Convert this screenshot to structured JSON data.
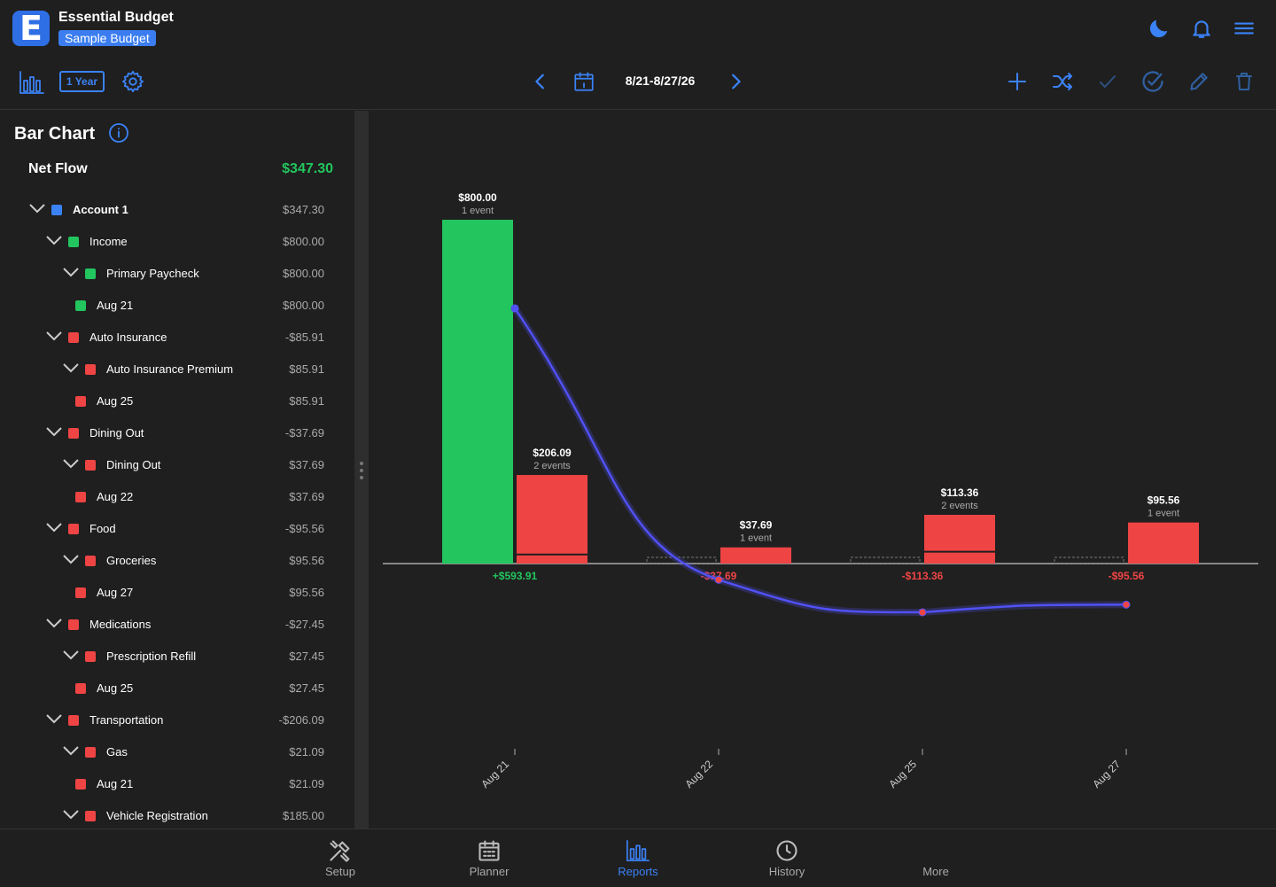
{
  "app": {
    "logo_letter": "E",
    "title": "Essential Budget",
    "budget_name": "Sample Budget"
  },
  "toolbar": {
    "period_label": "1 Year",
    "date_range": "8/21-8/27/26"
  },
  "panel": {
    "title": "Bar Chart",
    "net_flow_label": "Net Flow",
    "net_flow_value": "$347.30",
    "tree": [
      {
        "level": 0,
        "label": "Account 1",
        "value": "$347.30",
        "color": "#3b82f6",
        "expanded": true,
        "bold": true
      },
      {
        "level": 1,
        "label": "Income",
        "value": "$800.00",
        "color": "#22c55e",
        "expanded": true
      },
      {
        "level": 2,
        "label": "Primary Paycheck",
        "value": "$800.00",
        "color": "#22c55e",
        "expanded": true
      },
      {
        "level": 3,
        "label": "Aug 21",
        "value": "$800.00",
        "color": "#22c55e"
      },
      {
        "level": 1,
        "label": "Auto Insurance",
        "value": "-$85.91",
        "color": "#ef4444",
        "expanded": true
      },
      {
        "level": 2,
        "label": "Auto Insurance Premium",
        "value": "$85.91",
        "color": "#ef4444",
        "expanded": true
      },
      {
        "level": 3,
        "label": "Aug 25",
        "value": "$85.91",
        "color": "#ef4444"
      },
      {
        "level": 1,
        "label": "Dining Out",
        "value": "-$37.69",
        "color": "#ef4444",
        "expanded": true
      },
      {
        "level": 2,
        "label": "Dining Out",
        "value": "$37.69",
        "color": "#ef4444",
        "expanded": true
      },
      {
        "level": 3,
        "label": "Aug 22",
        "value": "$37.69",
        "color": "#ef4444"
      },
      {
        "level": 1,
        "label": "Food",
        "value": "-$95.56",
        "color": "#ef4444",
        "expanded": true
      },
      {
        "level": 2,
        "label": "Groceries",
        "value": "$95.56",
        "color": "#ef4444",
        "expanded": true
      },
      {
        "level": 3,
        "label": "Aug 27",
        "value": "$95.56",
        "color": "#ef4444"
      },
      {
        "level": 1,
        "label": "Medications",
        "value": "-$27.45",
        "color": "#ef4444",
        "expanded": true
      },
      {
        "level": 2,
        "label": "Prescription Refill",
        "value": "$27.45",
        "color": "#ef4444",
        "expanded": true
      },
      {
        "level": 3,
        "label": "Aug 25",
        "value": "$27.45",
        "color": "#ef4444"
      },
      {
        "level": 1,
        "label": "Transportation",
        "value": "-$206.09",
        "color": "#ef4444",
        "expanded": true
      },
      {
        "level": 2,
        "label": "Gas",
        "value": "$21.09",
        "color": "#ef4444",
        "expanded": true
      },
      {
        "level": 3,
        "label": "Aug 21",
        "value": "$21.09",
        "color": "#ef4444"
      },
      {
        "level": 2,
        "label": "Vehicle Registration",
        "value": "$185.00",
        "color": "#ef4444",
        "expanded": true
      }
    ]
  },
  "chart_data": {
    "type": "bar",
    "categories": [
      "Aug 21",
      "Aug 22",
      "Aug 25",
      "Aug 27"
    ],
    "income": [
      {
        "value": 800.0,
        "label": "$800.00",
        "events": "1 event"
      },
      null,
      null,
      null
    ],
    "expenses": [
      {
        "value": 206.09,
        "label": "$206.09",
        "events": "2 events",
        "segments": [
          185.0,
          21.09
        ]
      },
      {
        "value": 37.69,
        "label": "$37.69",
        "events": "1 event",
        "segments": [
          37.69
        ]
      },
      {
        "value": 113.36,
        "label": "$113.36",
        "events": "2 events",
        "segments": [
          85.91,
          27.45
        ]
      },
      {
        "value": 95.56,
        "label": "$95.56",
        "events": "1 event",
        "segments": [
          95.56
        ]
      }
    ],
    "net": [
      {
        "value": 593.91,
        "label": "+$593.91"
      },
      {
        "value": -37.69,
        "label": "-$37.69"
      },
      {
        "value": -113.36,
        "label": "-$113.36"
      },
      {
        "value": -95.56,
        "label": "-$95.56"
      }
    ],
    "income_color": "#22c55e",
    "expense_color": "#ef4444",
    "trend_color": "#5151f5",
    "ylim": [
      -700,
      900
    ]
  },
  "tabs": [
    {
      "name": "setup",
      "label": "Setup"
    },
    {
      "name": "planner",
      "label": "Planner"
    },
    {
      "name": "reports",
      "label": "Reports",
      "active": true
    },
    {
      "name": "history",
      "label": "History"
    },
    {
      "name": "more",
      "label": "More"
    }
  ]
}
